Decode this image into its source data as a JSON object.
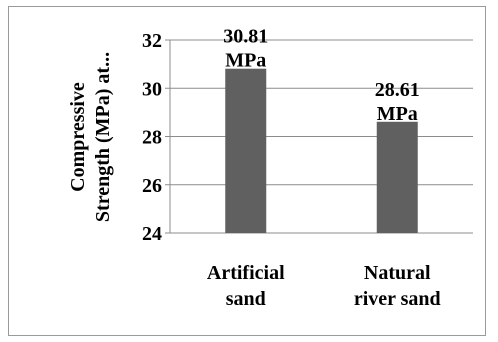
{
  "chart_data": {
    "type": "bar",
    "categories": [
      [
        "Artificial",
        "sand"
      ],
      [
        "Natural",
        "river sand"
      ]
    ],
    "values": [
      30.81,
      28.61
    ],
    "data_labels": [
      [
        "30.81",
        "MPa"
      ],
      [
        "28.61",
        "MPa"
      ]
    ],
    "title": "",
    "xlabel": "",
    "ylabel_lines": [
      "Compressive",
      "Strength (MPa) at..."
    ],
    "ylim": [
      24,
      32
    ],
    "yticks": [
      24,
      26,
      28,
      30,
      32
    ],
    "grid": true,
    "legend": "none",
    "bar_color": "#606060"
  }
}
